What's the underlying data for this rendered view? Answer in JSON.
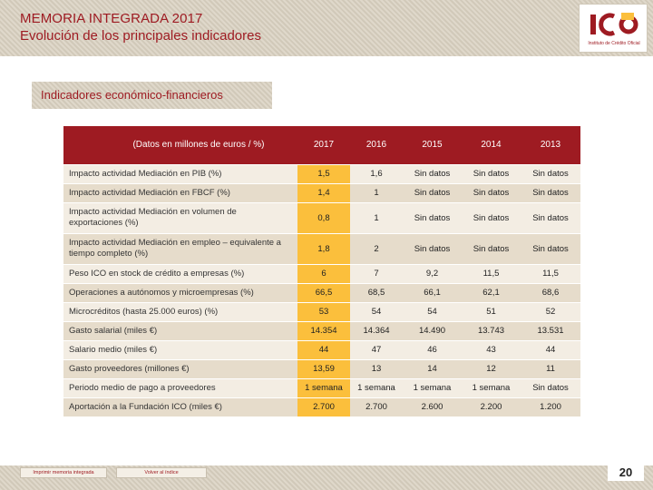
{
  "header": {
    "title": "MEMORIA INTEGRADA 2017",
    "subtitle": "Evolución de los principales indicadores",
    "logo_text": "ICO",
    "logo_caption": "Instituto de Crédito Oficial"
  },
  "section": {
    "title": "Indicadores económico-financieros"
  },
  "table": {
    "corner_label": "(Datos en millones de euros / %)",
    "columns": [
      "2017",
      "2016",
      "2015",
      "2014",
      "2013"
    ],
    "rows": [
      {
        "label": "Impacto actividad Mediación en PIB (%)",
        "values": [
          "1,5",
          "1,6",
          "Sin datos",
          "Sin datos",
          "Sin datos"
        ]
      },
      {
        "label": "Impacto actividad Mediación en FBCF (%)",
        "values": [
          "1,4",
          "1",
          "Sin datos",
          "Sin datos",
          "Sin datos"
        ]
      },
      {
        "label": "Impacto actividad Mediación en volumen de exportaciones (%)",
        "values": [
          "0,8",
          "1",
          "Sin datos",
          "Sin datos",
          "Sin datos"
        ]
      },
      {
        "label": "Impacto actividad Mediación en empleo – equivalente a tiempo completo (%)",
        "values": [
          "1,8",
          "2",
          "Sin datos",
          "Sin datos",
          "Sin datos"
        ]
      },
      {
        "label": "Peso ICO en stock de crédito a empresas (%)",
        "values": [
          "6",
          "7",
          "9,2",
          "11,5",
          "11,5"
        ]
      },
      {
        "label": "Operaciones a autónomos y microempresas (%)",
        "values": [
          "66,5",
          "68,5",
          "66,1",
          "62,1",
          "68,6"
        ]
      },
      {
        "label": "Microcréditos (hasta 25.000 euros) (%)",
        "values": [
          "53",
          "54",
          "54",
          "51",
          "52"
        ]
      },
      {
        "label": "Gasto salarial (miles €)",
        "values": [
          "14.354",
          "14.364",
          "14.490",
          "13.743",
          "13.531"
        ]
      },
      {
        "label": "Salario medio (miles €)",
        "values": [
          "44",
          "47",
          "46",
          "43",
          "44"
        ]
      },
      {
        "label": "Gasto proveedores (millones €)",
        "values": [
          "13,59",
          "13",
          "14",
          "12",
          "11"
        ]
      },
      {
        "label": "Periodo medio de pago a proveedores",
        "values": [
          "1 semana",
          "1 semana",
          "1 semana",
          "1 semana",
          "Sin datos"
        ]
      },
      {
        "label": "Aportación a la Fundación ICO (miles €)",
        "values": [
          "2.700",
          "2.700",
          "2.600",
          "2.200",
          "1.200"
        ]
      }
    ]
  },
  "footer": {
    "print_label": "Imprimir memoria integrada",
    "index_label": "Volver al índice",
    "page_number": "20"
  },
  "colors": {
    "brand": "#9e1b22",
    "highlight": "#fbbf3c",
    "band": "#d8cfbf"
  }
}
